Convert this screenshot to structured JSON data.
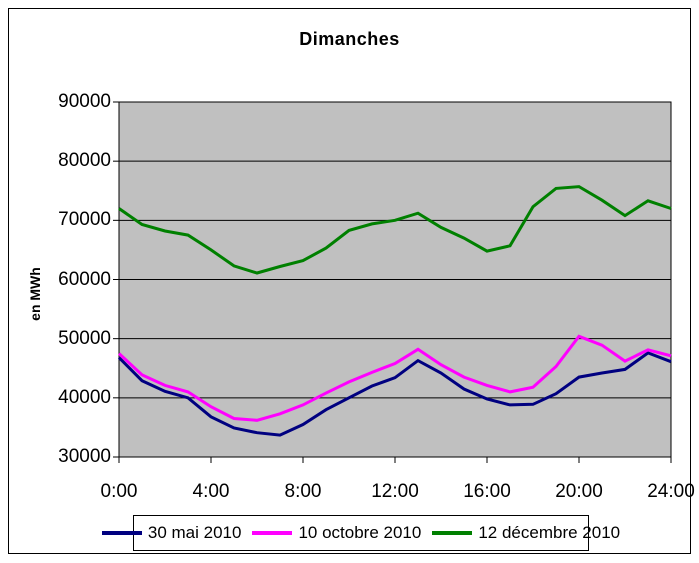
{
  "chart": {
    "title": "Dimanches",
    "ylabel": "en MWh",
    "legend": {
      "position": "bottom-center"
    },
    "chart_data": {
      "type": "line",
      "title": "Dimanches",
      "xlabel": "",
      "ylabel": "en MWh",
      "grid": true,
      "plot_background": "#C0C0C0",
      "axis_color": "#000000",
      "xlim_hours": [
        0,
        24
      ],
      "ylim": [
        30000,
        90000
      ],
      "y_ticks": [
        30000,
        40000,
        50000,
        60000,
        70000,
        80000,
        90000
      ],
      "x_tick_hours": [
        0,
        4,
        8,
        12,
        16,
        20,
        24
      ],
      "x_tick_labels": [
        "0:00",
        "4:00",
        "8:00",
        "12:00",
        "16:00",
        "20:00",
        "24:00"
      ],
      "x_hours": [
        0,
        1,
        2,
        3,
        4,
        5,
        6,
        7,
        8,
        9,
        10,
        11,
        12,
        13,
        14,
        15,
        16,
        17,
        18,
        19,
        20,
        21,
        22,
        23,
        24
      ],
      "series": [
        {
          "name": "30 mai 2010",
          "color": "#000080",
          "values": [
            46800,
            42900,
            41100,
            40000,
            36800,
            34900,
            34100,
            33700,
            35500,
            38000,
            40000,
            42000,
            43400,
            46300,
            44200,
            41500,
            39800,
            38800,
            38900,
            40700,
            43500,
            44200,
            44800,
            47600,
            46100
          ]
        },
        {
          "name": "10 octobre 2010",
          "color": "#FF00FF",
          "values": [
            47500,
            43900,
            42100,
            41000,
            38500,
            36500,
            36200,
            37300,
            38800,
            40800,
            42700,
            44300,
            45800,
            48200,
            45600,
            43500,
            42100,
            41000,
            41800,
            45300,
            50400,
            48900,
            46200,
            48100,
            47100
          ]
        },
        {
          "name": "12 décembre 2010",
          "color": "#008000",
          "values": [
            72000,
            69300,
            68200,
            67500,
            65000,
            62300,
            61100,
            62200,
            63200,
            65300,
            68300,
            69400,
            70000,
            71200,
            68800,
            67000,
            64800,
            65700,
            72300,
            75400,
            75700,
            73400,
            70800,
            73300,
            72000
          ]
        }
      ]
    }
  }
}
